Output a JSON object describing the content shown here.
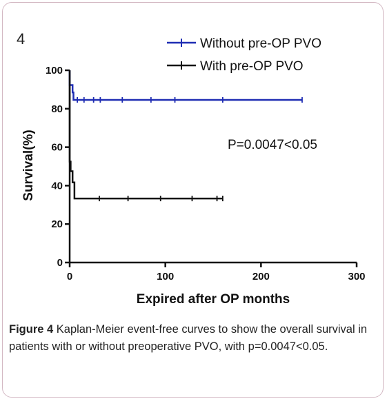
{
  "figure": {
    "panel_label": "4",
    "caption_label": "Figure 4",
    "caption_text": " Kaplan-Meier event-free curves to show the overall survival in patients with or without preoperative PVO, with p=0.0047<0.05."
  },
  "chart_data": {
    "type": "line",
    "title": "",
    "xlabel": "Expired after OP months",
    "ylabel": "Survival(%)",
    "xlim": [
      0,
      300
    ],
    "ylim": [
      0,
      100
    ],
    "xticks": [
      0,
      100,
      200,
      300
    ],
    "yticks": [
      0,
      20,
      40,
      60,
      80,
      100
    ],
    "grid": false,
    "legend_position": "top-right",
    "annotation": "P=0.0047<0.05",
    "series": [
      {
        "name": "Without pre-OP PVO",
        "color": "#1f2db3",
        "step_points": [
          [
            0,
            100
          ],
          [
            0,
            92.3
          ],
          [
            3,
            92.3
          ],
          [
            3,
            88.5
          ],
          [
            4,
            88.5
          ],
          [
            4,
            84.6
          ],
          [
            243,
            84.6
          ]
        ],
        "censored": [
          [
            8,
            84.6
          ],
          [
            15,
            84.6
          ],
          [
            25,
            84.6
          ],
          [
            32,
            84.6
          ],
          [
            55,
            84.6
          ],
          [
            85,
            84.6
          ],
          [
            110,
            84.6
          ],
          [
            160,
            84.6
          ],
          [
            243,
            84.6
          ]
        ]
      },
      {
        "name": "With pre-OP PVO",
        "color": "#111111",
        "step_points": [
          [
            0,
            100
          ],
          [
            0,
            52.5
          ],
          [
            1,
            52.5
          ],
          [
            1,
            47.5
          ],
          [
            3,
            47.5
          ],
          [
            3,
            41.7
          ],
          [
            5,
            41.7
          ],
          [
            5,
            33.3
          ],
          [
            160,
            33.3
          ]
        ],
        "censored": [
          [
            31,
            33.3
          ],
          [
            61,
            33.3
          ],
          [
            95,
            33.3
          ],
          [
            128,
            33.3
          ],
          [
            154,
            33.3
          ],
          [
            160,
            33.3
          ]
        ]
      }
    ]
  }
}
